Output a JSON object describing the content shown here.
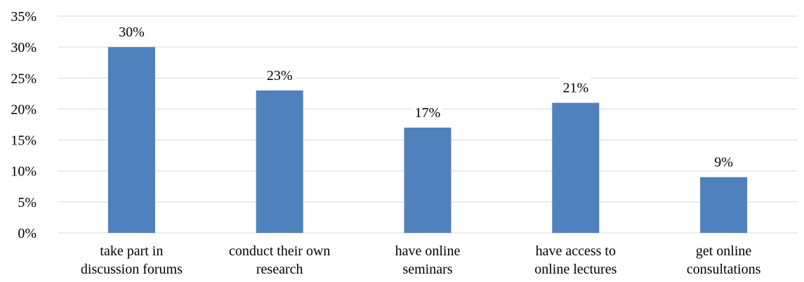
{
  "chart_data": {
    "type": "bar",
    "categories": [
      [
        "take part in",
        "discussion forums"
      ],
      [
        "conduct their own",
        "research"
      ],
      [
        "have online",
        "seminars"
      ],
      [
        "have access to",
        "online lectures"
      ],
      [
        "get online",
        "consultations"
      ]
    ],
    "values": [
      30,
      23,
      17,
      21,
      9
    ],
    "data_labels": [
      "30%",
      "23%",
      "17%",
      "21%",
      "9%"
    ],
    "y_ticks": [
      0,
      5,
      10,
      15,
      20,
      25,
      30,
      35
    ],
    "y_tick_labels": [
      "0%",
      "5%",
      "10%",
      "15%",
      "20%",
      "25%",
      "30%",
      "35%"
    ],
    "ylim": [
      0,
      35
    ],
    "grid": true,
    "legend": "none",
    "bar_color": "#4f81bd"
  }
}
